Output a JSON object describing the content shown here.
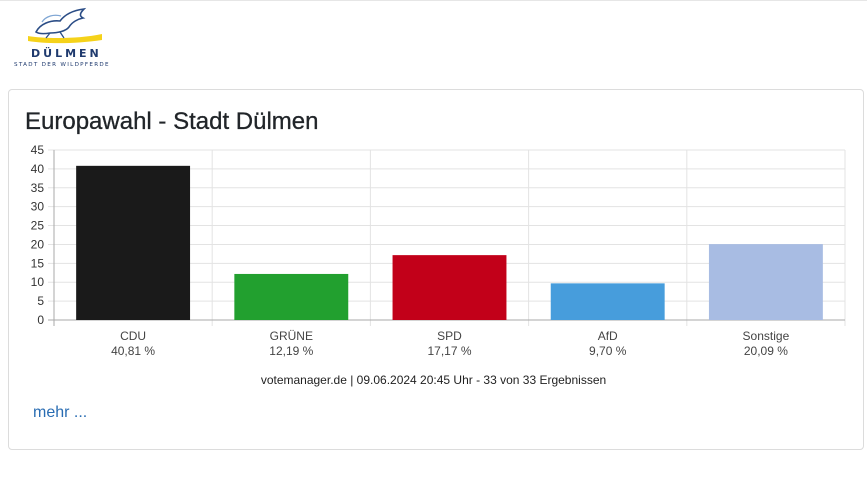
{
  "logo": {
    "name": "DÜLMEN",
    "tagline": "STADT DER WILDPFERDE"
  },
  "card": {
    "title": "Europawahl - Stadt Dülmen",
    "source": "votemanager.de | 09.06.2024 20:45 Uhr - 33 von 33 Ergebnissen",
    "more_link": "mehr ..."
  },
  "chart_data": {
    "type": "bar",
    "categories": [
      "CDU",
      "GRÜNE",
      "SPD",
      "AfD",
      "Sonstige"
    ],
    "values": [
      40.81,
      12.19,
      17.17,
      9.7,
      20.09
    ],
    "value_labels": [
      "40,81 %",
      "12,19 %",
      "17,17 %",
      "9,70 %",
      "20,09 %"
    ],
    "colors": [
      "#1a1a1a",
      "#22a02f",
      "#c20019",
      "#479ddc",
      "#a8bce3"
    ],
    "ylim": [
      0,
      45
    ],
    "yticks": [
      0,
      5,
      10,
      15,
      20,
      25,
      30,
      35,
      40,
      45
    ],
    "grid": true
  }
}
